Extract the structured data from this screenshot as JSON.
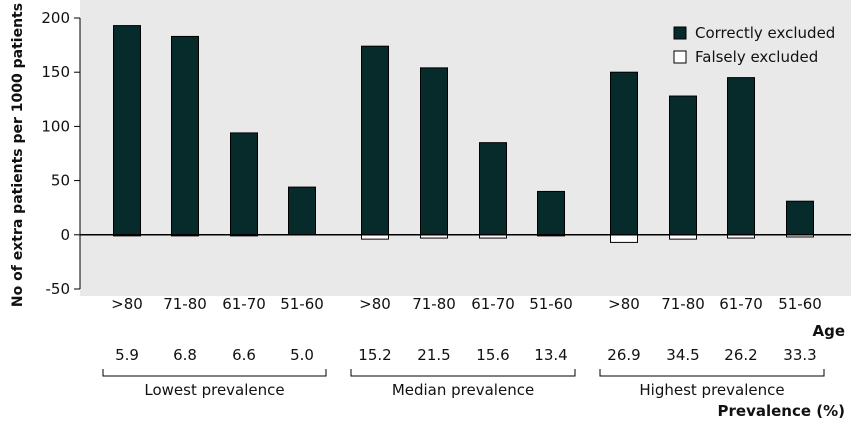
{
  "chart_data": {
    "type": "bar",
    "ylabel": "No of extra patients per 1000 patients",
    "xlabel": "Age",
    "ylim": [
      -50,
      200
    ],
    "yticks": [
      200,
      150,
      100,
      50,
      0,
      -50
    ],
    "grid": false,
    "legend_position": "top-right",
    "categories": [
      ">80",
      "71-80",
      "61-70",
      "51-60",
      ">80",
      "71-80",
      "61-70",
      "51-60",
      ">80",
      "71-80",
      "61-70",
      "51-60"
    ],
    "series": [
      {
        "name": "Correctly excluded",
        "color": "#062b2a",
        "values": [
          193,
          183,
          94,
          44,
          174,
          154,
          85,
          40,
          150,
          128,
          145,
          31
        ]
      },
      {
        "name": "Falsely excluded",
        "color": "#ffffff",
        "values": [
          -1,
          -1,
          -1,
          0,
          -4,
          -3,
          -3,
          -1,
          -7,
          -4,
          -3,
          -2
        ]
      }
    ],
    "prevalence_row": {
      "label": "Prevalence (%)",
      "values": [
        "5.9",
        "6.8",
        "6.6",
        "5.0",
        "15.2",
        "21.5",
        "15.6",
        "13.4",
        "26.9",
        "34.5",
        "26.2",
        "33.3"
      ]
    },
    "groups": [
      {
        "label": "Lowest prevalence"
      },
      {
        "label": "Median prevalence"
      },
      {
        "label": "Highest prevalence"
      }
    ]
  }
}
